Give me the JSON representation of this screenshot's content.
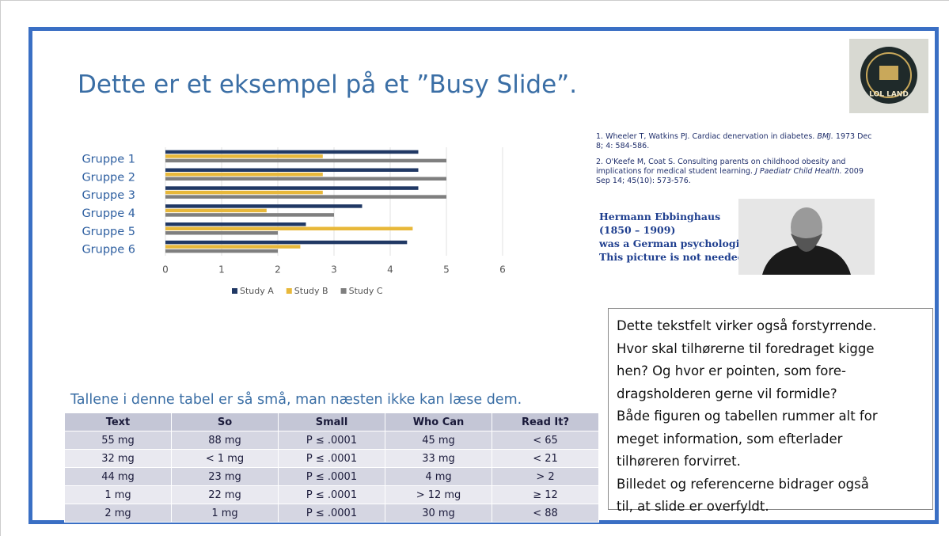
{
  "title": "Dette er et eksempel på et ”Busy Slide”.",
  "logo": {
    "text": "LOL LAND"
  },
  "chart_data": {
    "type": "hbar",
    "categories": [
      "Gruppe 1",
      "Gruppe 2",
      "Gruppe 3",
      "Gruppe 4",
      "Gruppe 5",
      "Gruppe 6"
    ],
    "series": [
      {
        "name": "Study A",
        "color": "#203864",
        "values": [
          4.5,
          4.5,
          4.5,
          3.5,
          2.5,
          4.3
        ]
      },
      {
        "name": "Study B",
        "color": "#e8b83a",
        "values": [
          2.8,
          2.8,
          2.8,
          1.8,
          4.4,
          2.4
        ]
      },
      {
        "name": "Study C",
        "color": "#7f7f7f",
        "values": [
          5,
          5,
          5,
          3,
          2,
          2
        ]
      }
    ],
    "xlim": [
      0,
      6
    ],
    "xticks": [
      0,
      1,
      2,
      3,
      4,
      5,
      6
    ],
    "grid": true,
    "legend": "bottom"
  },
  "references": [
    {
      "text": "1.  Wheeler T, Watkins PJ. Cardiac denervation in diabetes. ",
      "journal": "BMJ.",
      "rest": " 1973 Dec 8; 4: 584-586."
    },
    {
      "text": "2. O'Keefe M, Coat S. Consulting parents on childhood obesity and implications for medical student learning. ",
      "journal": "J Paediatr Child Health.",
      "rest": " 2009 Sep 14; 45(10): 573-576."
    }
  ],
  "portrait_caption": [
    "Hermann Ebbinghaus",
    "(1850 – 1909)",
    "was a German psychologist",
    "This picture is not needed."
  ],
  "textbox": [
    "Dette tekstfelt virker også forstyrrende.",
    "Hvor skal tilhørerne til foredraget kigge",
    "hen? Og hvor er pointen, som fore-",
    "dragsholderen gerne vil formidle?",
    "Både figuren og tabellen rummer alt for",
    "meget information, som efterlader",
    "tilhøreren forvirret.",
    "Billedet og referencerne bidrager også",
    "til, at slide er overfyldt."
  ],
  "table": {
    "caption": "Tallene i denne tabel er så små, man næsten ikke kan læse dem.",
    "header": [
      "Text",
      "So",
      "Small",
      "Who Can",
      "Read It?"
    ],
    "rows": [
      [
        "55 mg",
        "88 mg",
        "P ≤ .0001",
        "45 mg",
        "< 65"
      ],
      [
        "32 mg",
        "< 1 mg",
        "P ≤ .0001",
        "33 mg",
        "< 21"
      ],
      [
        "44 mg",
        "23 mg",
        "P ≤ .0001",
        "4 mg",
        "> 2"
      ],
      [
        "1 mg",
        "22 mg",
        "P ≤ .0001",
        "> 12 mg",
        "≥ 12"
      ],
      [
        "2 mg",
        "1 mg",
        "P ≤ .0001",
        "30 mg",
        "< 88"
      ]
    ]
  }
}
